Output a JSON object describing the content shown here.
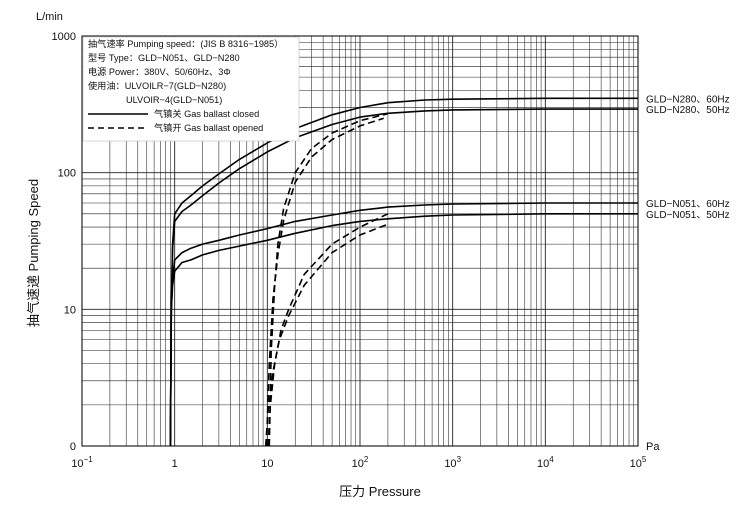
{
  "chart_data": {
    "type": "line",
    "xscale": "log",
    "yscale": "log",
    "xlim": [
      0.1,
      100000
    ],
    "ylim": [
      1,
      1000
    ],
    "xlabel": "压力 Pressure",
    "ylabel": "抽气速递 Pumping Speed",
    "x_unit": "Pa",
    "y_unit": "L/min",
    "x_ticks": [
      {
        "value": 0.1,
        "base": "10",
        "exp": "−1"
      },
      {
        "value": 1,
        "base": "1",
        "exp": ""
      },
      {
        "value": 10,
        "base": "10",
        "exp": ""
      },
      {
        "value": 100,
        "base": "10",
        "exp": "2"
      },
      {
        "value": 1000,
        "base": "10",
        "exp": "3"
      },
      {
        "value": 10000,
        "base": "10",
        "exp": "4"
      },
      {
        "value": 100000,
        "base": "10",
        "exp": "5"
      }
    ],
    "y_ticks": [
      {
        "value": 1,
        "label": "0"
      },
      {
        "value": 10,
        "label": "10"
      },
      {
        "value": 100,
        "label": "100"
      },
      {
        "value": 1000,
        "label": "1000"
      }
    ],
    "grid": true,
    "info_lines": [
      "抽气速率 Pumping speed：(JIS B 8316−1985）",
      "型号 Type：GLD−N051、GLD−N280",
      "电源 Power：380V、50/60Hz、3Φ",
      "使用油：ULVOILR−7(GLD−N280)",
      "ULVOIR−4(GLD−N051)"
    ],
    "legend": [
      {
        "label": "气镇关 Gas ballast closed",
        "style": "solid"
      },
      {
        "label": "气镇开 Gas ballast opened",
        "style": "dashed"
      }
    ],
    "series": [
      {
        "name": "GLD−N280、60Hz",
        "style": "solid",
        "x": [
          0.9,
          0.92,
          0.95,
          1,
          1.2,
          1.5,
          2,
          3,
          5,
          10,
          20,
          50,
          100,
          200,
          500,
          1000,
          10000,
          100000
        ],
        "y": [
          1,
          10,
          30,
          50,
          60,
          68,
          80,
          98,
          125,
          165,
          210,
          265,
          300,
          325,
          340,
          345,
          350,
          350
        ]
      },
      {
        "name": "GLD−N280、50Hz",
        "style": "solid",
        "x": [
          0.9,
          0.92,
          0.95,
          1,
          1.2,
          1.5,
          2,
          3,
          5,
          10,
          20,
          50,
          100,
          200,
          500,
          1000,
          10000,
          100000
        ],
        "y": [
          1,
          10,
          28,
          44,
          52,
          58,
          68,
          84,
          107,
          142,
          180,
          225,
          255,
          272,
          283,
          288,
          292,
          292
        ]
      },
      {
        "name": "GLD−N051、60Hz",
        "style": "solid",
        "x": [
          0.9,
          0.92,
          0.95,
          1,
          1.2,
          1.5,
          2,
          3,
          5,
          10,
          20,
          50,
          100,
          200,
          500,
          1000,
          10000,
          100000
        ],
        "y": [
          1,
          10,
          17,
          23,
          26,
          28,
          30,
          32,
          35,
          39,
          44,
          49,
          53,
          56,
          58,
          59,
          60,
          60
        ]
      },
      {
        "name": "GLD−N051、50Hz",
        "style": "solid",
        "x": [
          0.9,
          0.92,
          0.95,
          1,
          1.2,
          1.5,
          2,
          3,
          5,
          10,
          20,
          50,
          100,
          200,
          500,
          1000,
          10000,
          100000
        ],
        "y": [
          1,
          10,
          15,
          19,
          22,
          23,
          25,
          27,
          29,
          32,
          36,
          41,
          44,
          46,
          48,
          49,
          50,
          50
        ]
      },
      {
        "name": "",
        "style": "dashed",
        "x": [
          10.5,
          11,
          12,
          13,
          15,
          20,
          30,
          50,
          100,
          200
        ],
        "y": [
          1,
          5,
          15,
          30,
          55,
          100,
          150,
          195,
          240,
          270
        ]
      },
      {
        "name": "",
        "style": "dashed",
        "x": [
          9.8,
          10.5,
          11.5,
          13,
          15,
          20,
          30,
          50,
          100,
          180
        ],
        "y": [
          1,
          4,
          12,
          25,
          45,
          85,
          130,
          175,
          220,
          250
        ]
      },
      {
        "name": "",
        "style": "dashed",
        "x": [
          10.2,
          10.8,
          12,
          14,
          17,
          25,
          50,
          100,
          200
        ],
        "y": [
          1,
          2,
          4,
          7,
          10,
          18,
          30,
          40,
          50
        ]
      },
      {
        "name": "",
        "style": "dashed",
        "x": [
          9.6,
          10.2,
          11.5,
          13.5,
          17,
          25,
          50,
          100,
          200
        ],
        "y": [
          1,
          1.8,
          3.5,
          6,
          9,
          15,
          26,
          35,
          42
        ]
      }
    ]
  }
}
